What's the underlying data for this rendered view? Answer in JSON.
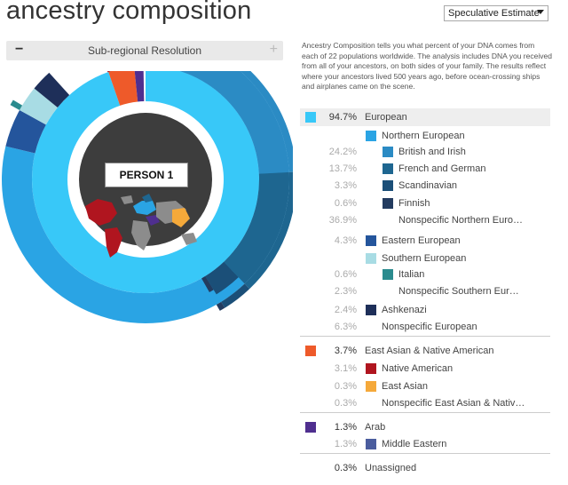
{
  "page": {
    "title": "ancestry composition"
  },
  "estimate_select": {
    "value": "Speculative Estimate"
  },
  "resolution_bar": {
    "label": "Sub-regional Resolution",
    "minus": "−",
    "plus": "+"
  },
  "description": "Ancestry Composition tells you what percent of your DNA comes from each of 22 populations worldwide. The analysis includes DNA you received from all of your ancestors, on both sides of your family. The results reflect where your ancestors lived 500 years ago, before ocean-crossing ships and airplanes came on the scene.",
  "person_label": "PERSON 1",
  "colors": {
    "european": "#38c8f8",
    "northern_european": "#2aa4e4",
    "british_irish": "#2b8bc4",
    "french_german": "#1e6690",
    "scandinavian": "#1b4f78",
    "finnish": "#233b5f",
    "eastern_european": "#24559c",
    "southern_european": "#a8dce4",
    "italian": "#2a8b8e",
    "ashkenazi": "#1e2f59",
    "east_asian_native": "#ee5a2a",
    "native_american": "#b0151f",
    "east_asian": "#f5a93a",
    "arab": "#4f2f8f",
    "middle_eastern": "#4b5d9e",
    "map_bg": "#3d3d3d",
    "map_land": "#8c8c8c"
  },
  "rows": [
    {
      "pct": "94.7%",
      "name": "European",
      "level": 0,
      "color": "#38c8f8"
    },
    {
      "pct": "",
      "name": "Northern European",
      "level": 1,
      "color": "#2aa4e4"
    },
    {
      "pct": "24.2%",
      "name": "British and Irish",
      "level": 2,
      "color": "#2b8bc4"
    },
    {
      "pct": "13.7%",
      "name": "French and German",
      "level": 2,
      "color": "#1e6690"
    },
    {
      "pct": "3.3%",
      "name": "Scandinavian",
      "level": 2,
      "color": "#1b4f78"
    },
    {
      "pct": "0.6%",
      "name": "Finnish",
      "level": 2,
      "color": "#233b5f"
    },
    {
      "pct": "36.9%",
      "name": "Nonspecific Northern Euro…",
      "level": 2,
      "color": ""
    },
    {
      "pct": "4.3%",
      "name": "Eastern European",
      "level": 1,
      "color": "#24559c"
    },
    {
      "pct": "",
      "name": "Southern European",
      "level": 1,
      "color": "#a8dce4"
    },
    {
      "pct": "0.6%",
      "name": "Italian",
      "level": 2,
      "color": "#2a8b8e"
    },
    {
      "pct": "2.3%",
      "name": "Nonspecific Southern Eur…",
      "level": 2,
      "color": ""
    },
    {
      "pct": "2.4%",
      "name": "Ashkenazi",
      "level": 1,
      "color": "#1e2f59"
    },
    {
      "pct": "6.3%",
      "name": "Nonspecific European",
      "level": 1,
      "color": ""
    },
    {
      "pct": "3.7%",
      "name": "East Asian & Native American",
      "level": 0,
      "color": "#ee5a2a"
    },
    {
      "pct": "3.1%",
      "name": "Native American",
      "level": 1,
      "color": "#b0151f"
    },
    {
      "pct": "0.3%",
      "name": "East Asian",
      "level": 1,
      "color": "#f5a93a"
    },
    {
      "pct": "0.3%",
      "name": "Nonspecific East Asian & Nativ…",
      "level": 1,
      "color": ""
    },
    {
      "pct": "1.3%",
      "name": "Arab",
      "level": 0,
      "color": "#4f2f8f"
    },
    {
      "pct": "1.3%",
      "name": "Middle Eastern",
      "level": 1,
      "color": "#4b5d9e"
    },
    {
      "pct": "0.3%",
      "name": "Unassigned",
      "level": 0,
      "color": ""
    }
  ],
  "chart_data": {
    "type": "pie",
    "title": "",
    "rings": [
      {
        "name": "inner",
        "slices": [
          {
            "label": "European",
            "value": 94.7,
            "color": "#38c8f8"
          },
          {
            "label": "East Asian & Native American",
            "value": 3.7,
            "color": "#ee5a2a"
          },
          {
            "label": "Arab",
            "value": 1.3,
            "color": "#4f2f8f"
          },
          {
            "label": "Unassigned",
            "value": 0.3,
            "color": ""
          }
        ]
      },
      {
        "name": "middle",
        "slices": [
          {
            "label": "Northern European",
            "value": 78.7,
            "color": "#2aa4e4"
          },
          {
            "label": "Eastern European",
            "value": 4.3,
            "color": "#24559c"
          },
          {
            "label": "Southern European",
            "value": 2.9,
            "color": "#a8dce4"
          },
          {
            "label": "Ashkenazi",
            "value": 2.4,
            "color": "#1e2f59"
          },
          {
            "label": "Nonspecific European",
            "value": 6.3,
            "color": ""
          },
          {
            "label": "Native American",
            "value": 3.1,
            "color": "#b0151f"
          },
          {
            "label": "East Asian",
            "value": 0.3,
            "color": "#f5a93a"
          },
          {
            "label": "Nonspecific East Asian & Native American",
            "value": 0.3,
            "color": ""
          },
          {
            "label": "Middle Eastern",
            "value": 1.3,
            "color": "#4b5d9e"
          },
          {
            "label": "Unassigned",
            "value": 0.3,
            "color": ""
          }
        ]
      },
      {
        "name": "outer",
        "slices": [
          {
            "label": "British and Irish",
            "value": 24.2,
            "color": "#2b8bc4"
          },
          {
            "label": "French and German",
            "value": 13.7,
            "color": "#1e6690"
          },
          {
            "label": "Scandinavian",
            "value": 3.3,
            "color": "#1b4f78"
          },
          {
            "label": "Finnish",
            "value": 0.6,
            "color": "#233b5f"
          },
          {
            "label": "Nonspecific Northern European",
            "value": 36.9,
            "color": ""
          },
          {
            "label": "Eastern European",
            "value": 4.3,
            "color": ""
          },
          {
            "label": "Italian",
            "value": 0.6,
            "color": "#2a8b8e"
          },
          {
            "label": "Nonspecific Southern European",
            "value": 2.3,
            "color": ""
          },
          {
            "label": "Ashkenazi",
            "value": 2.4,
            "color": ""
          },
          {
            "label": "Nonspecific European",
            "value": 6.3,
            "color": ""
          },
          {
            "label": "Native American",
            "value": 3.1,
            "color": ""
          },
          {
            "label": "East Asian",
            "value": 0.3,
            "color": ""
          },
          {
            "label": "Nonspecific East Asian & Native American",
            "value": 0.3,
            "color": ""
          },
          {
            "label": "Middle Eastern",
            "value": 1.3,
            "color": ""
          },
          {
            "label": "Unassigned",
            "value": 0.3,
            "color": ""
          }
        ]
      }
    ]
  }
}
